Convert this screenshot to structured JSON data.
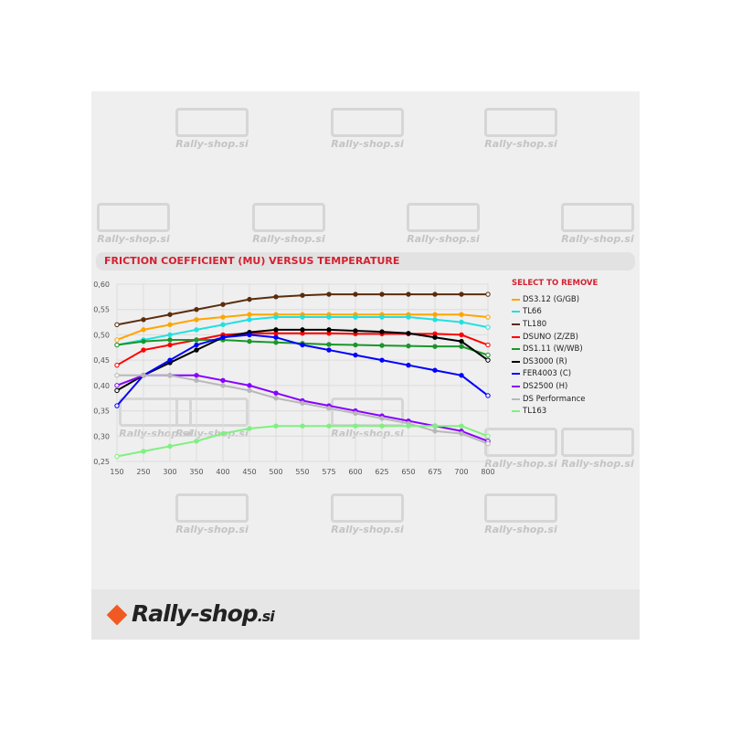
{
  "watermark": "Rally-shop.si",
  "footer_logo": {
    "name": "Rally-shop",
    "suffix": ".si"
  },
  "chart_data": {
    "type": "line",
    "title": "FRICTION COEFFICIENT (MU) VERSUS TEMPERATURE",
    "xlabel": "",
    "ylabel": "",
    "categories": [
      "150",
      "250",
      "300",
      "350",
      "400",
      "450",
      "500",
      "550",
      "575",
      "600",
      "625",
      "650",
      "675",
      "700",
      "800"
    ],
    "ylim": [
      0.25,
      0.6
    ],
    "yticks": [
      "0,25",
      "0,30",
      "0,35",
      "0,40",
      "0,45",
      "0,50",
      "0,55",
      "0,60"
    ],
    "grid": true,
    "legend_title": "SELECT TO REMOVE",
    "legend_position": "right",
    "series": [
      {
        "name": "DS3.12 (G/GB)",
        "color": "#ffa500",
        "values": [
          0.49,
          0.51,
          0.52,
          0.53,
          0.535,
          0.54,
          0.54,
          0.54,
          0.54,
          0.54,
          0.54,
          0.54,
          0.54,
          0.54,
          0.535
        ]
      },
      {
        "name": "TL66",
        "color": "#22e0e0",
        "values": [
          0.48,
          0.49,
          0.5,
          0.51,
          0.52,
          0.53,
          0.535,
          0.535,
          0.535,
          0.535,
          0.535,
          0.535,
          0.53,
          0.525,
          0.515
        ]
      },
      {
        "name": "TL180",
        "color": "#5a2d0c",
        "values": [
          0.52,
          0.53,
          0.54,
          0.55,
          0.56,
          0.57,
          0.575,
          0.578,
          0.58,
          0.58,
          0.58,
          0.58,
          0.58,
          0.58,
          0.58
        ]
      },
      {
        "name": "DSUNO (Z/ZB)",
        "color": "#ff0000",
        "values": [
          0.44,
          0.47,
          0.48,
          0.49,
          0.5,
          0.503,
          0.503,
          0.503,
          0.503,
          0.502,
          0.502,
          0.502,
          0.502,
          0.5,
          0.48
        ]
      },
      {
        "name": "DS1.11 (W/WB)",
        "color": "#1a962a",
        "values": [
          0.48,
          0.487,
          0.49,
          0.49,
          0.49,
          0.487,
          0.485,
          0.483,
          0.481,
          0.48,
          0.479,
          0.478,
          0.477,
          0.477,
          0.46
        ]
      },
      {
        "name": "DS3000 (R)",
        "color": "#000000",
        "values": [
          0.39,
          0.42,
          0.445,
          0.47,
          0.495,
          0.505,
          0.51,
          0.51,
          0.51,
          0.508,
          0.506,
          0.503,
          0.495,
          0.487,
          0.45
        ]
      },
      {
        "name": "FER4003 (C)",
        "color": "#0000ff",
        "values": [
          0.36,
          0.42,
          0.45,
          0.48,
          0.495,
          0.5,
          0.495,
          0.48,
          0.47,
          0.46,
          0.45,
          0.44,
          0.43,
          0.42,
          0.38
        ]
      },
      {
        "name": "DS2500 (H)",
        "color": "#8800ff",
        "values": [
          0.4,
          0.42,
          0.42,
          0.42,
          0.41,
          0.4,
          0.385,
          0.37,
          0.36,
          0.35,
          0.34,
          0.33,
          0.32,
          0.31,
          0.29
        ]
      },
      {
        "name": "DS Performance",
        "color": "#b8b8b8",
        "values": [
          0.42,
          0.42,
          0.42,
          0.41,
          0.4,
          0.39,
          0.375,
          0.365,
          0.355,
          0.345,
          0.335,
          0.325,
          0.31,
          0.305,
          0.285
        ]
      },
      {
        "name": "TL163",
        "color": "#80f080",
        "values": [
          0.26,
          0.27,
          0.28,
          0.29,
          0.305,
          0.315,
          0.32,
          0.32,
          0.32,
          0.32,
          0.32,
          0.32,
          0.32,
          0.32,
          0.3
        ]
      }
    ]
  }
}
